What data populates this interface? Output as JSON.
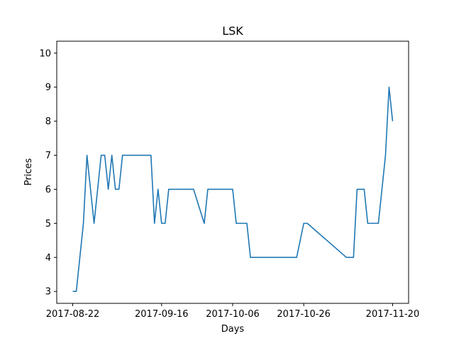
{
  "chart_data": {
    "type": "line",
    "title": "LSK",
    "xlabel": "Days",
    "ylabel": "Prices",
    "x_start": "2017-08-22",
    "x_end": "2017-11-20",
    "xticks": [
      "2017-08-22",
      "2017-09-16",
      "2017-10-06",
      "2017-10-26",
      "2017-11-20"
    ],
    "yticks": [
      3,
      4,
      5,
      6,
      7,
      8,
      9,
      10
    ],
    "ylim": [
      2.65,
      10.35
    ],
    "grid": false,
    "line_color": "#1f77b4",
    "series": [
      {
        "x": [
          "2017-08-22",
          "2017-08-23",
          "2017-08-25",
          "2017-08-26",
          "2017-08-28",
          "2017-08-30",
          "2017-08-31",
          "2017-09-01",
          "2017-09-02",
          "2017-09-03",
          "2017-09-04",
          "2017-09-05",
          "2017-09-06",
          "2017-09-13",
          "2017-09-14",
          "2017-09-15",
          "2017-09-16",
          "2017-09-17",
          "2017-09-18",
          "2017-09-23",
          "2017-09-24",
          "2017-09-25",
          "2017-09-28",
          "2017-09-29",
          "2017-10-06",
          "2017-10-07",
          "2017-10-09",
          "2017-10-10",
          "2017-10-11",
          "2017-10-12",
          "2017-10-23",
          "2017-10-24",
          "2017-10-26",
          "2017-10-27",
          "2017-11-07",
          "2017-11-08",
          "2017-11-09",
          "2017-11-10",
          "2017-11-12",
          "2017-11-13",
          "2017-11-15",
          "2017-11-16",
          "2017-11-18",
          "2017-11-19",
          "2017-11-20"
        ],
        "y": [
          3,
          3,
          5,
          7,
          5,
          7,
          7,
          6,
          7,
          6,
          6,
          7,
          7,
          7,
          5,
          6,
          5,
          5,
          6,
          6,
          6,
          6,
          5,
          6,
          6,
          5,
          5,
          5,
          4,
          4,
          4,
          4,
          5,
          5,
          4,
          4,
          4,
          6,
          6,
          5,
          5,
          5,
          7,
          9,
          8
        ]
      }
    ]
  }
}
